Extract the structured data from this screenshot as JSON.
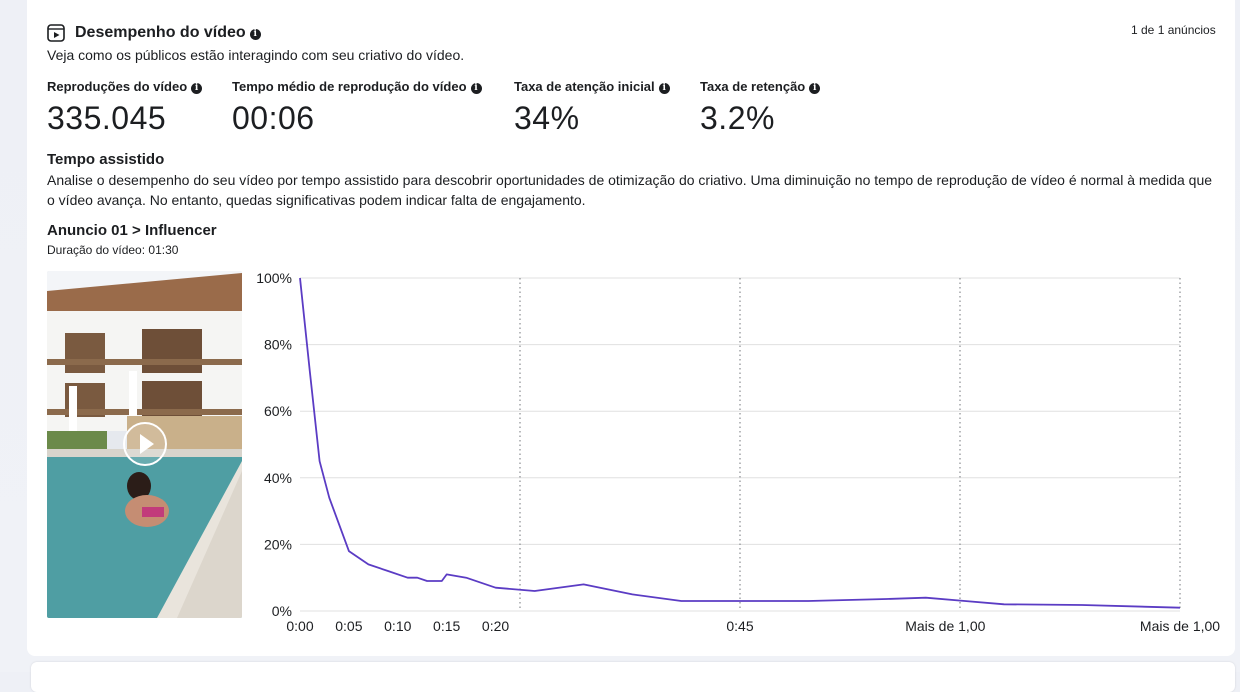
{
  "header": {
    "title": "Desempenho do vídeo",
    "subtitle": "Veja como os públicos estão interagindo com seu criativo do vídeo.",
    "counter": "1 de 1 anúncios"
  },
  "metrics": [
    {
      "label": "Reproduções do vídeo",
      "value": "335.045"
    },
    {
      "label": "Tempo médio de reprodução do vídeo",
      "value": "00:06"
    },
    {
      "label": "Taxa de atenção inicial",
      "value": "34%"
    },
    {
      "label": "Taxa de retenção",
      "value": "3.2%"
    }
  ],
  "watch_time": {
    "title": "Tempo assistido",
    "description": "Analise o desempenho do seu vídeo por tempo assistido para descobrir oportunidades de otimização do criativo. Uma diminuição no tempo de reprodução de vídeo é normal à medida que o vídeo avança. No entanto, quedas significativas podem indicar falta de engajamento.",
    "ad_name": "Anuncio 01 > Influencer",
    "duration": "Duração do vídeo: 01:30"
  },
  "icons": {
    "title": "video-play-icon",
    "info": "info-icon",
    "thumbnail_play": "play-icon"
  },
  "colors": {
    "line": "#5b3cc4",
    "grid": "#e0e0e0",
    "text": "#1c1e21"
  },
  "chart_data": {
    "type": "line",
    "y_ticks": [
      "100%",
      "80%",
      "60%",
      "40%",
      "20%",
      "0%"
    ],
    "ylim": [
      0,
      100
    ],
    "x_ticks": [
      {
        "label": "0:00",
        "t": 0
      },
      {
        "label": "0:05",
        "t": 5
      },
      {
        "label": "0:10",
        "t": 10
      },
      {
        "label": "0:15",
        "t": 15
      },
      {
        "label": "0:20",
        "t": 20
      },
      {
        "label": "0:45",
        "t": 45
      },
      {
        "label": "Mais de 1,00",
        "t": 66
      },
      {
        "label": "Mais de 1,00",
        "t": 90
      }
    ],
    "vertical_dotted_lines_t": [
      22.5,
      45,
      67.5,
      90
    ],
    "xlim": [
      0,
      90
    ],
    "series": [
      {
        "points": [
          [
            0,
            100
          ],
          [
            1,
            72
          ],
          [
            2,
            45
          ],
          [
            3,
            34
          ],
          [
            5,
            18
          ],
          [
            7,
            14
          ],
          [
            9,
            12
          ],
          [
            11,
            10
          ],
          [
            12,
            10
          ],
          [
            13,
            9
          ],
          [
            14.5,
            9
          ],
          [
            15,
            11
          ],
          [
            17,
            10
          ],
          [
            20,
            7
          ],
          [
            24,
            6
          ],
          [
            29,
            8
          ],
          [
            34,
            5
          ],
          [
            39,
            3
          ],
          [
            45,
            3
          ],
          [
            52,
            3
          ],
          [
            60,
            3.6
          ],
          [
            64,
            4
          ],
          [
            68,
            3
          ],
          [
            72,
            2
          ],
          [
            80,
            1.8
          ],
          [
            90,
            1
          ]
        ]
      }
    ]
  }
}
